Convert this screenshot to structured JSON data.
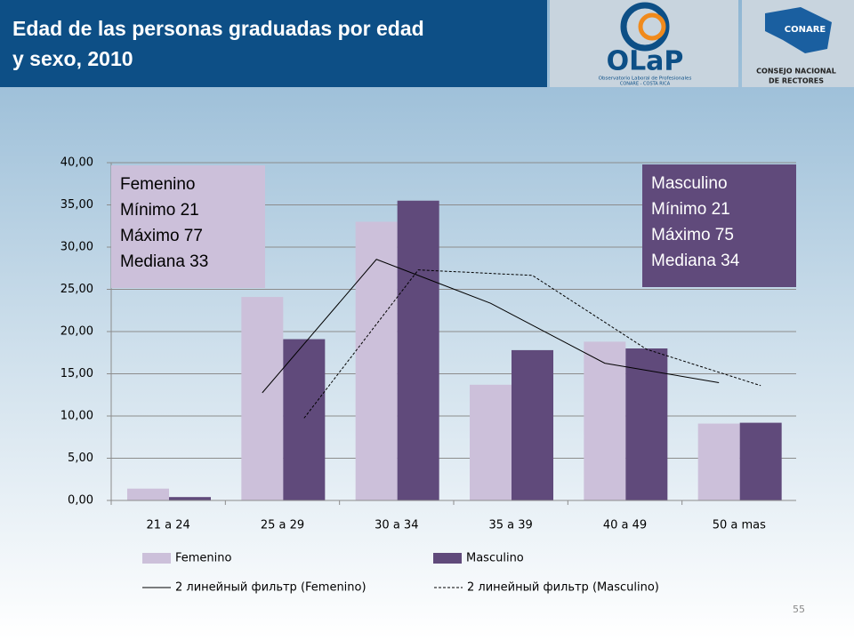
{
  "header": {
    "title_lines": [
      "Edad de las personas graduadas por edad",
      "y sexo, 2010"
    ],
    "olap_logo": {
      "name": "OLaP",
      "line1": "Observatorio Laboral de Profesionales",
      "line2": "CONARE - COSTA RICA"
    },
    "conare_logo": {
      "name": "CONARE",
      "line1": "CONSEJO NACIONAL",
      "line2": "DE RECTORES"
    }
  },
  "chart_data": {
    "type": "bar",
    "categories": [
      "21 a 24",
      "25 a 29",
      "30 a 34",
      "35 a  39",
      "40 a 49",
      "50 a mas"
    ],
    "series": [
      {
        "name": "Femenino",
        "color": "#ccc0da",
        "values": [
          1.4,
          24.1,
          33.0,
          13.7,
          18.8,
          9.1
        ]
      },
      {
        "name": "Masculino",
        "color": "#604a7b",
        "values": [
          0.4,
          19.1,
          35.5,
          17.8,
          18.0,
          9.2
        ]
      }
    ],
    "trendlines": [
      {
        "name": "2 линейный фильтр (Femenino)",
        "color": "#000000",
        "dash": false,
        "align": 0,
        "values": [
          null,
          12.75,
          28.55,
          23.35,
          16.25,
          13.95
        ]
      },
      {
        "name": "2 линейный фильтр (Masculino)",
        "color": "#000000",
        "dash": true,
        "align": 1,
        "values": [
          null,
          9.75,
          27.3,
          26.65,
          17.9,
          13.6
        ]
      }
    ],
    "ylim": [
      0,
      40
    ],
    "yticks": [
      {
        "value": 0,
        "label": "0,00"
      },
      {
        "value": 5,
        "label": "5,00"
      },
      {
        "value": 10,
        "label": "10,00"
      },
      {
        "value": 15,
        "label": "15,00"
      },
      {
        "value": 20,
        "label": "20,00"
      },
      {
        "value": 25,
        "label": "25,00"
      },
      {
        "value": 30,
        "label": "30,00"
      },
      {
        "value": 35,
        "label": "35,00"
      },
      {
        "value": 40,
        "label": "40,00"
      }
    ],
    "grid": true,
    "annotations": [
      {
        "lines": [
          "Femenino",
          "Mínimo 21",
          "Máximo 77",
          "Mediana 33"
        ]
      },
      {
        "lines": [
          "Masculino",
          "Mínimo 21",
          "Máximo 75",
          "Mediana 34"
        ]
      }
    ]
  },
  "page_number": "55"
}
